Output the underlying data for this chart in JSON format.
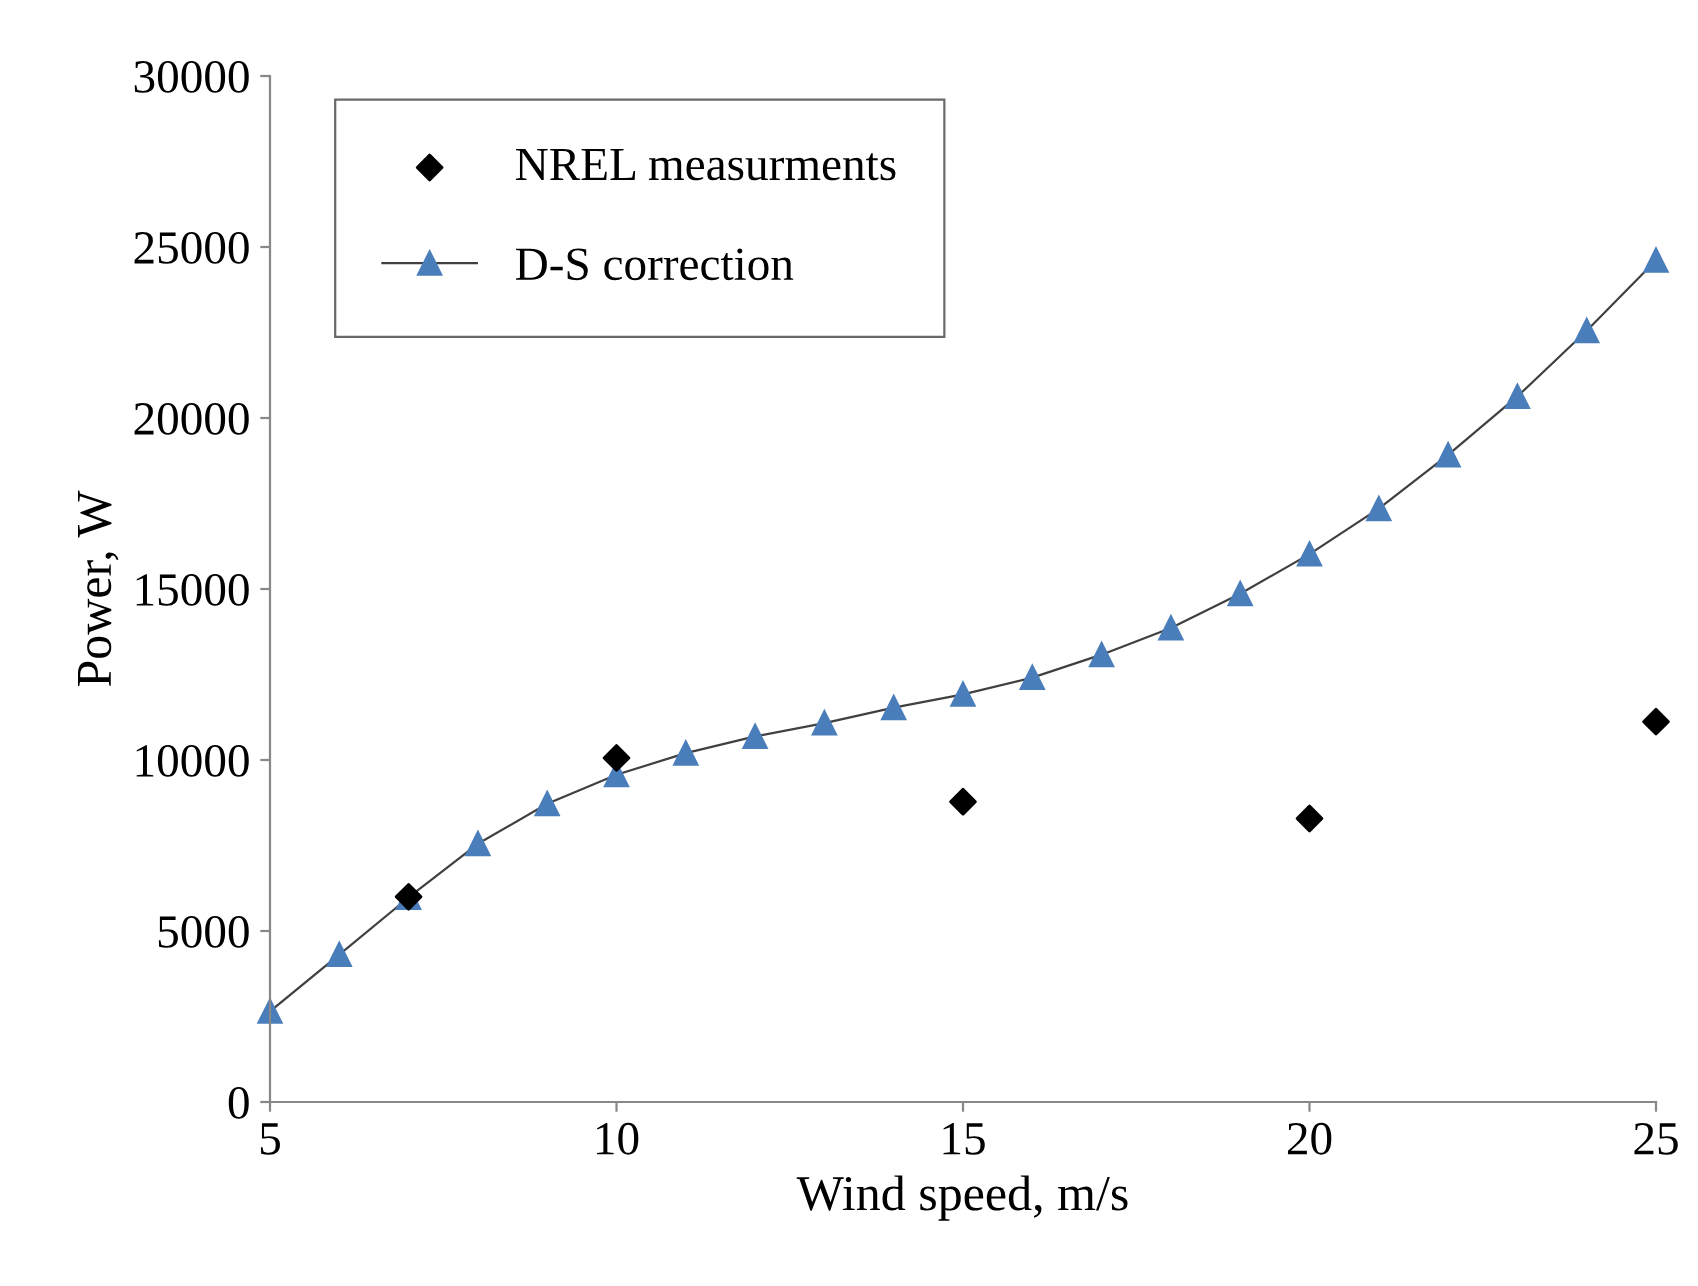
{
  "chart_data": {
    "type": "line",
    "xlabel": "Wind speed, m/s",
    "ylabel": "Power, W",
    "xlim": [
      5,
      25
    ],
    "xticks": [
      5,
      10,
      15,
      20,
      25
    ],
    "ylim": [
      0,
      30000
    ],
    "yticks": [
      0,
      5000,
      10000,
      15000,
      20000,
      25000,
      30000
    ],
    "grid": false,
    "legend": "top left",
    "series": [
      {
        "name": "NREL measurments",
        "type": "scatter",
        "marker": "diamond",
        "color": "#000000",
        "x": [
          7,
          10,
          15,
          20,
          25
        ],
        "values": [
          6000,
          10060,
          8780,
          8290,
          11120
        ]
      },
      {
        "name": "D-S correction",
        "marker": "triangle",
        "color": "#4a7ebb",
        "x": [
          5,
          6,
          7,
          8,
          9,
          10,
          11,
          12,
          13,
          14,
          15,
          16,
          17,
          18,
          19,
          20,
          21,
          22,
          23,
          24,
          25
        ],
        "values": [
          2650,
          4310,
          5980,
          7550,
          8720,
          9570,
          10200,
          10690,
          11080,
          11530,
          11920,
          12410,
          13080,
          13860,
          14860,
          16020,
          17350,
          18920,
          20630,
          22550,
          24610
        ]
      }
    ]
  }
}
